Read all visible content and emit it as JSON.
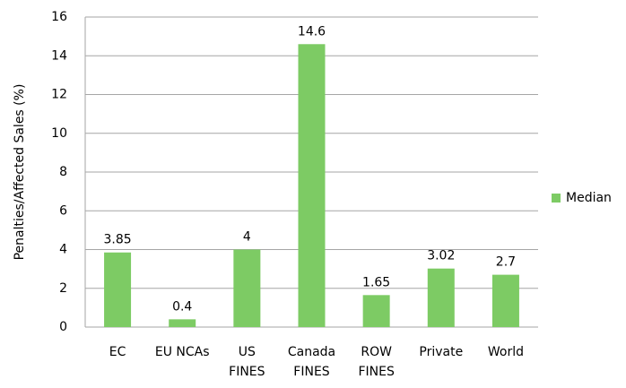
{
  "chart_data": {
    "type": "bar",
    "y_label": "Penalties/Affected Sales (%)",
    "categories": [
      "EC",
      "EU NCAs",
      "US\nFINES",
      "Canada\nFINES",
      "ROW\nFINES",
      "Private",
      "World"
    ],
    "series": [
      {
        "name": "Median",
        "color": "#7dcb64",
        "values": [
          3.85,
          0.4,
          4,
          14.6,
          1.65,
          3.02,
          2.7
        ]
      }
    ],
    "ylim": [
      0,
      16
    ],
    "yticks": [
      0,
      2,
      4,
      6,
      8,
      10,
      12,
      14,
      16
    ],
    "grid": true,
    "legend": "right"
  }
}
